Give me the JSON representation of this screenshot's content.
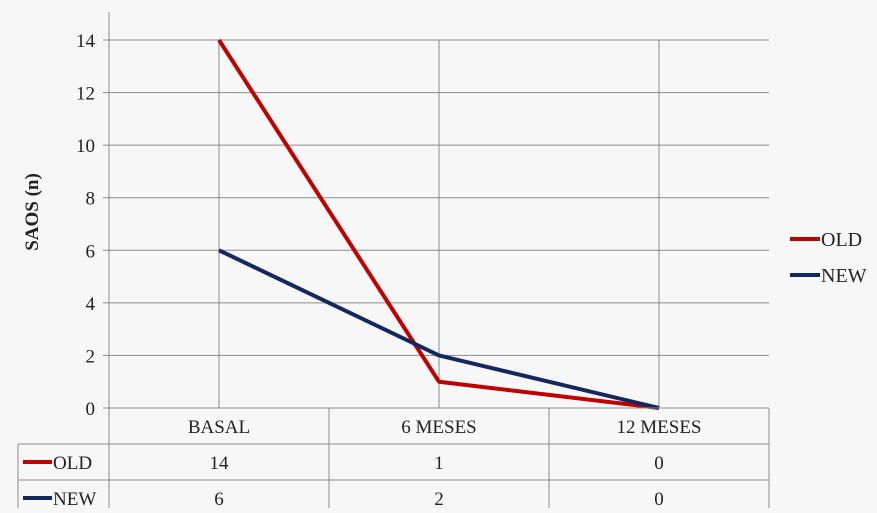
{
  "chart_data": {
    "type": "line",
    "title": "",
    "xlabel": "",
    "ylabel": "SAOS (n)",
    "ylim": [
      0,
      14
    ],
    "yticks": [
      0,
      2,
      4,
      6,
      8,
      10,
      12,
      14
    ],
    "categories": [
      "BASAL",
      "6 MESES",
      "12 MESES"
    ],
    "series": [
      {
        "name": "OLD",
        "values": [
          14,
          1,
          0
        ],
        "color": "#c00000"
      },
      {
        "name": "NEW",
        "values": [
          6,
          2,
          0
        ],
        "color": "#14285f"
      }
    ],
    "grid": true,
    "legend": "right",
    "data_table": true
  }
}
